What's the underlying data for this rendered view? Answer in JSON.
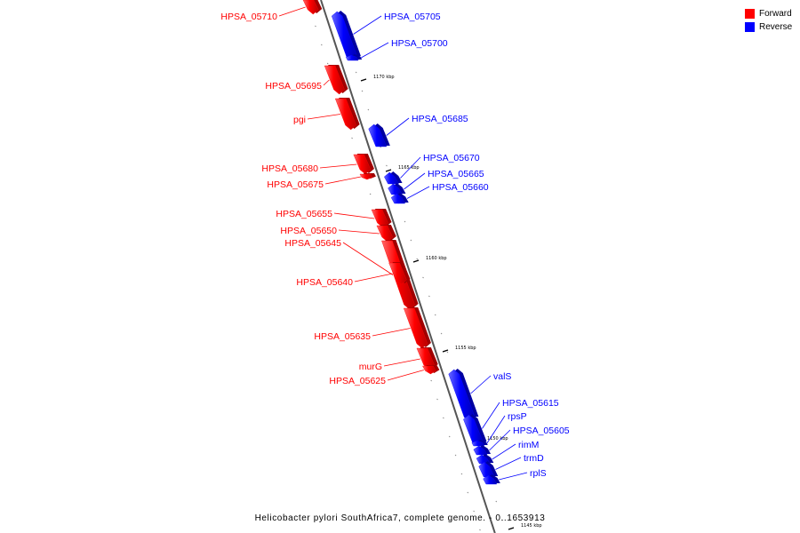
{
  "legend": {
    "forward": {
      "label": "Forward",
      "color": "#ff0000"
    },
    "reverse": {
      "label": "Reverse",
      "color": "#0000ff"
    }
  },
  "caption": "Helicobacter pylori SouthAfrica7, complete genome. - 0..1653913",
  "ticks": [
    "1170 kbp",
    "1165 kbp",
    "1160 kbp",
    "1155 kbp",
    "1150 kbp",
    "1145 kbp"
  ],
  "genes": [
    {
      "name": "HPSA_05710",
      "strand": "forward"
    },
    {
      "name": "HPSA_05705",
      "strand": "reverse"
    },
    {
      "name": "HPSA_05700",
      "strand": "reverse"
    },
    {
      "name": "HPSA_05695",
      "strand": "forward"
    },
    {
      "name": "pgi",
      "strand": "forward"
    },
    {
      "name": "HPSA_05685",
      "strand": "reverse"
    },
    {
      "name": "HPSA_05680",
      "strand": "forward"
    },
    {
      "name": "HPSA_05675",
      "strand": "forward"
    },
    {
      "name": "HPSA_05670",
      "strand": "reverse"
    },
    {
      "name": "HPSA_05665",
      "strand": "reverse"
    },
    {
      "name": "HPSA_05660",
      "strand": "reverse"
    },
    {
      "name": "HPSA_05655",
      "strand": "forward"
    },
    {
      "name": "HPSA_05650",
      "strand": "forward"
    },
    {
      "name": "HPSA_05645",
      "strand": "forward"
    },
    {
      "name": "HPSA_05640",
      "strand": "forward"
    },
    {
      "name": "HPSA_05635",
      "strand": "forward"
    },
    {
      "name": "murG",
      "strand": "forward"
    },
    {
      "name": "HPSA_05625",
      "strand": "forward"
    },
    {
      "name": "valS",
      "strand": "reverse"
    },
    {
      "name": "HPSA_05615",
      "strand": "reverse"
    },
    {
      "name": "rpsP",
      "strand": "reverse"
    },
    {
      "name": "HPSA_05605",
      "strand": "reverse"
    },
    {
      "name": "rimM",
      "strand": "reverse"
    },
    {
      "name": "trmD",
      "strand": "reverse"
    },
    {
      "name": "rplS",
      "strand": "reverse"
    }
  ]
}
